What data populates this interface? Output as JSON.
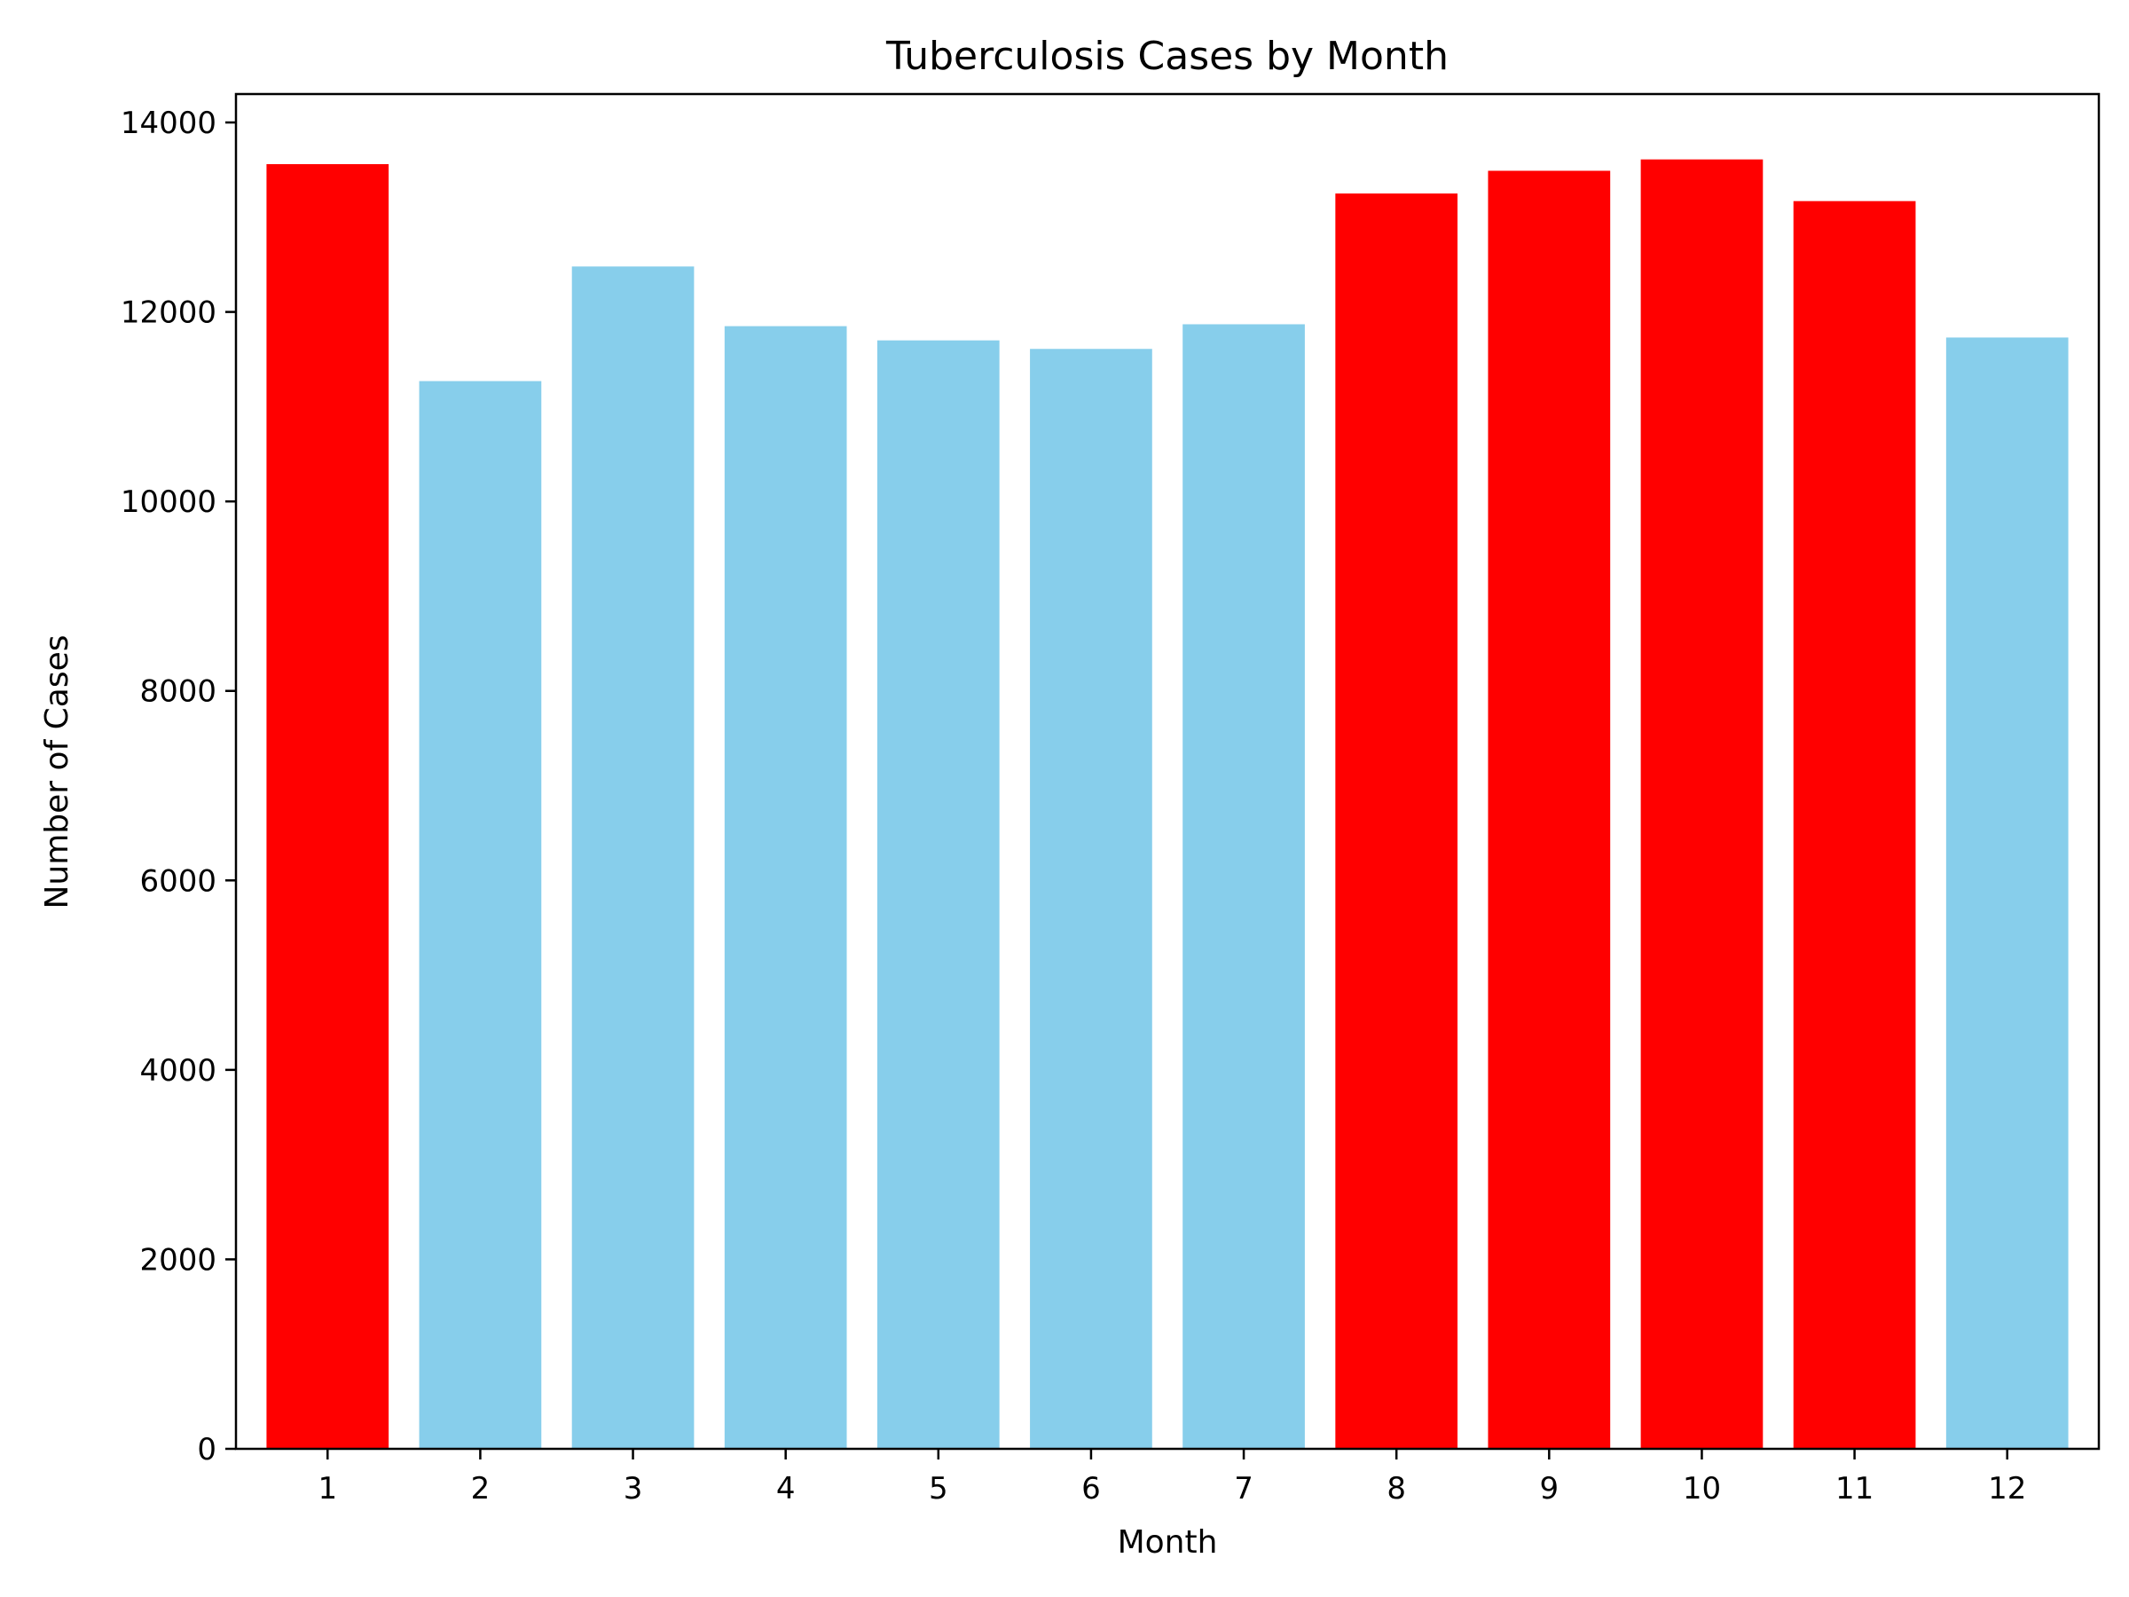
{
  "chart_data": {
    "type": "bar",
    "title": "Tuberculosis Cases by Month",
    "xlabel": "Month",
    "ylabel": "Number of Cases",
    "categories": [
      "1",
      "2",
      "3",
      "4",
      "5",
      "6",
      "7",
      "8",
      "9",
      "10",
      "11",
      "12"
    ],
    "values": [
      13560,
      11270,
      12480,
      11850,
      11700,
      11610,
      11870,
      13250,
      13490,
      13610,
      13170,
      11730
    ],
    "highlighted": [
      true,
      false,
      false,
      false,
      false,
      false,
      false,
      true,
      true,
      true,
      true,
      false
    ],
    "ylim": [
      0,
      14300
    ],
    "yticks": [
      0,
      2000,
      4000,
      6000,
      8000,
      10000,
      12000,
      14000
    ],
    "ytick_labels": [
      "0",
      "2000",
      "4000",
      "6000",
      "8000",
      "10000",
      "12000",
      "14000"
    ],
    "grid": false,
    "legend": null,
    "colors": {
      "highlight": "#ff0000",
      "normal": "#87ceeb",
      "axis": "#000000"
    }
  }
}
